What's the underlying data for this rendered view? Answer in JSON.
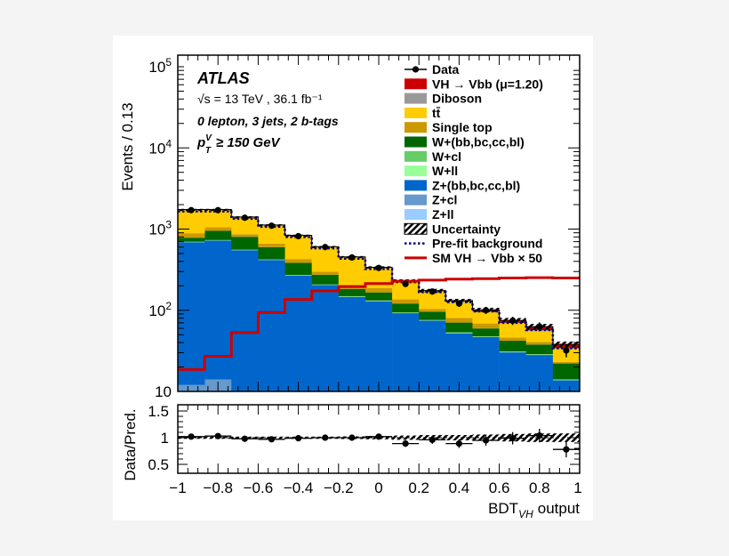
{
  "chart_data": {
    "type": "bar",
    "subtype": "stacked-histogram-log",
    "experiment_label": "ATLAS",
    "annotations": {
      "energy_lumi": "√s = 13 TeV , 36.1 fb⁻¹",
      "region": "0 lepton, 3 jets, 2 b-tags",
      "pt_cut": {
        "p": "p",
        "sub": "T",
        "sup": "V",
        "rest": "≥ 150 GeV"
      }
    },
    "ylabel": "Events / 0.13",
    "ratio_ylabel": "Data/Pred.",
    "xlabel": {
      "main": "BDT",
      "sub": "VH",
      "rest": "output"
    },
    "xlim": [
      -1,
      1
    ],
    "ylim": [
      10,
      100000
    ],
    "yscale": "log",
    "ratio_ylim": [
      0.4,
      1.6
    ],
    "xticks": [
      -1,
      -0.8,
      -0.6,
      -0.4,
      -0.2,
      0,
      0.2,
      0.4,
      0.6,
      0.8,
      1
    ],
    "xtick_labels": [
      "−1",
      "−0.8",
      "−0.6",
      "−0.4",
      "−0.2",
      "0",
      "0.2",
      "0.4",
      "0.6",
      "0.8",
      "1"
    ],
    "yticks": [
      10,
      100,
      1000,
      10000,
      100000
    ],
    "ratio_yticks": [
      0.5,
      1,
      1.5
    ],
    "ratio_ytick_labels": [
      "0.5",
      "1",
      "1.5"
    ],
    "legend_position": "top-right",
    "bin_edges": [
      -1,
      -0.8667,
      -0.7333,
      -0.6,
      -0.4667,
      -0.3333,
      -0.2,
      -0.0667,
      0.0667,
      0.2,
      0.3333,
      0.4667,
      0.6,
      0.7333,
      0.8667,
      1
    ],
    "stack": [
      {
        "name": "Z+ll",
        "color": "#99ccff",
        "values": [
          2,
          2,
          1.5,
          1.5,
          1,
          1,
          1,
          1,
          0.5,
          0.5,
          0.5,
          0.5,
          0.3,
          0.3,
          0.2
        ]
      },
      {
        "name": "Z+cl",
        "color": "#6699cc",
        "values": [
          10,
          12,
          8,
          7,
          6,
          5,
          4,
          3,
          2.5,
          2,
          1.5,
          1.2,
          1,
          0.8,
          0.5
        ]
      },
      {
        "name": "Z+(bb,bc,cc,bl)",
        "color": "#0066cc",
        "values": [
          678,
          707,
          540,
          408,
          260,
          198,
          141,
          125,
          89,
          72,
          50,
          45,
          29,
          27,
          13
        ]
      },
      {
        "name": "W+ll",
        "color": "#99ff99",
        "values": [
          3,
          3,
          2,
          2,
          1.5,
          1,
          1,
          1,
          0.5,
          0.5,
          0.5,
          0.3,
          0.3,
          0.2,
          0.1
        ]
      },
      {
        "name": "W+cl",
        "color": "#66cc66",
        "values": [
          8,
          9,
          7,
          5,
          3.5,
          3,
          2,
          2,
          1.5,
          1,
          1,
          0.7,
          0.5,
          0.5,
          0.3
        ]
      },
      {
        "name": "W+(bb,bc,cc,bl)",
        "color": "#006600",
        "values": [
          82,
          218,
          245,
          176,
          112,
          66,
          34,
          34,
          27,
          20,
          17,
          12,
          11,
          9,
          8
        ]
      },
      {
        "name": "Single top",
        "color": "#cc9900",
        "values": [
          106,
          99,
          62,
          62,
          44,
          24,
          21,
          22,
          15,
          8,
          10,
          9,
          4,
          3,
          1
        ]
      },
      {
        "name": "tt̄",
        "color": "#ffcc00",
        "values": [
          846,
          685,
          540,
          459,
          405,
          306,
          246,
          146,
          91,
          66,
          46,
          27,
          23,
          15,
          10.5
        ]
      },
      {
        "name": "Diboson",
        "color": "#999999",
        "values": [
          4,
          4,
          3,
          3,
          3,
          2,
          2,
          2,
          2,
          1.5,
          1.5,
          1.5,
          1,
          1,
          0.5
        ]
      },
      {
        "name": "VH → Vbb (μ=1.20)",
        "color": "#cc0000",
        "values": [
          1,
          1,
          1,
          1,
          1.5,
          1.5,
          2,
          2,
          2.5,
          3,
          3.5,
          4,
          5,
          6,
          4
        ]
      }
    ],
    "data": {
      "name": "Data",
      "values": [
        1710,
        1710,
        1380,
        1100,
        817,
        600,
        447,
        332,
        211,
        170,
        121,
        100,
        74.5,
        63,
        32
      ]
    },
    "uncertainty": {
      "name": "Uncertainty",
      "relative": [
        0.02,
        0.02,
        0.02,
        0.02,
        0.02,
        0.02,
        0.025,
        0.03,
        0.04,
        0.05,
        0.05,
        0.06,
        0.07,
        0.08,
        0.08
      ]
    },
    "prefit_background": {
      "name": "Pre-fit background",
      "color": "#000080",
      "values": [
        1650,
        1650,
        1340,
        1070,
        800,
        580,
        432,
        322,
        222,
        167,
        126,
        97,
        70,
        57,
        34
      ]
    },
    "sm_signal_x50": {
      "name": "SM VH → Vbb × 50",
      "color": "#cc0000",
      "values": [
        18.6,
        27,
        53,
        94,
        136,
        173,
        196,
        213,
        228,
        235,
        242,
        245,
        250,
        252,
        250
      ]
    },
    "ratio": {
      "values": [
        1.02,
        1.03,
        0.98,
        0.97,
        0.99,
        1.0,
        1.0,
        1.02,
        0.89,
        0.96,
        0.89,
        0.95,
        0.99,
        1.04,
        0.78
      ]
    },
    "legend": [
      "Data",
      "VH → Vbb (μ=1.20)",
      "Diboson",
      "tt̄",
      "Single top",
      "W+(bb,bc,cc,bl)",
      "W+cl",
      "W+ll",
      "Z+(bb,bc,cc,bl)",
      "Z+cl",
      "Z+ll",
      "Uncertainty",
      "Pre-fit background",
      "SM VH → Vbb × 50"
    ]
  }
}
